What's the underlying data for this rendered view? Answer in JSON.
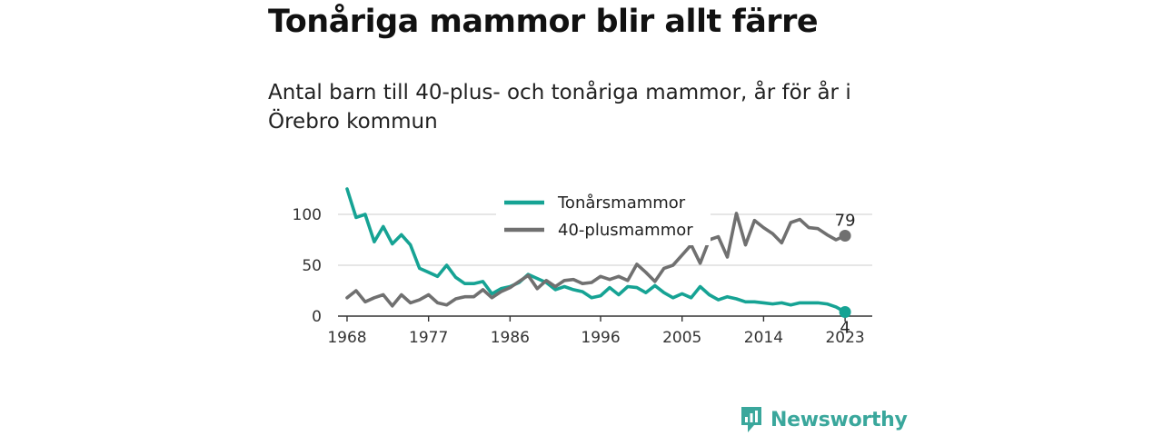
{
  "title": "Tonåriga mammor blir allt färre",
  "subtitle": "Antal barn till 40-plus- och tonåriga mammor, år för år i Örebro kommun",
  "brand": "Newsworthy",
  "colors": {
    "teen": "#16a394",
    "plus40": "#707070",
    "grid": "#dedede",
    "axis": "#333333",
    "brand": "#3aa79c"
  },
  "chart_data": {
    "type": "line",
    "title": "",
    "xlabel": "",
    "ylabel": "",
    "x": [
      1968,
      1969,
      1970,
      1971,
      1972,
      1973,
      1974,
      1975,
      1976,
      1977,
      1978,
      1979,
      1980,
      1981,
      1982,
      1983,
      1984,
      1985,
      1986,
      1987,
      1988,
      1989,
      1990,
      1991,
      1992,
      1993,
      1994,
      1995,
      1996,
      1997,
      1998,
      1999,
      2000,
      2001,
      2002,
      2003,
      2004,
      2005,
      2006,
      2007,
      2008,
      2009,
      2010,
      2011,
      2012,
      2013,
      2014,
      2015,
      2016,
      2017,
      2018,
      2019,
      2020,
      2021,
      2022,
      2023
    ],
    "xticks": [
      1968,
      1977,
      1986,
      1996,
      2005,
      2014,
      2023
    ],
    "yticks": [
      0,
      50,
      100
    ],
    "xlim": [
      1967,
      2026
    ],
    "ylim": [
      0,
      125
    ],
    "grid": "horizontal",
    "legend_position": "top-center",
    "series": [
      {
        "name": "Tonårsmammor",
        "color_key": "teen",
        "values": [
          125,
          97,
          100,
          73,
          88,
          71,
          80,
          70,
          47,
          43,
          39,
          50,
          38,
          32,
          32,
          34,
          22,
          27,
          29,
          33,
          41,
          37,
          33,
          26,
          29,
          26,
          24,
          18,
          20,
          28,
          21,
          29,
          28,
          23,
          30,
          23,
          18,
          22,
          18,
          29,
          21,
          16,
          19,
          17,
          14,
          14,
          13,
          12,
          13,
          11,
          13,
          13,
          13,
          12,
          9,
          4
        ],
        "end_label": "4"
      },
      {
        "name": "40-plusmammor",
        "color_key": "plus40",
        "values": [
          18,
          25,
          14,
          18,
          21,
          10,
          21,
          13,
          16,
          21,
          13,
          11,
          17,
          19,
          19,
          26,
          18,
          24,
          28,
          34,
          40,
          27,
          35,
          29,
          35,
          36,
          32,
          33,
          39,
          36,
          39,
          35,
          51,
          43,
          34,
          47,
          50,
          60,
          70,
          52,
          75,
          78,
          58,
          101,
          70,
          94,
          87,
          81,
          72,
          92,
          95,
          87,
          86,
          80,
          75,
          79
        ],
        "end_label": "79"
      }
    ]
  }
}
